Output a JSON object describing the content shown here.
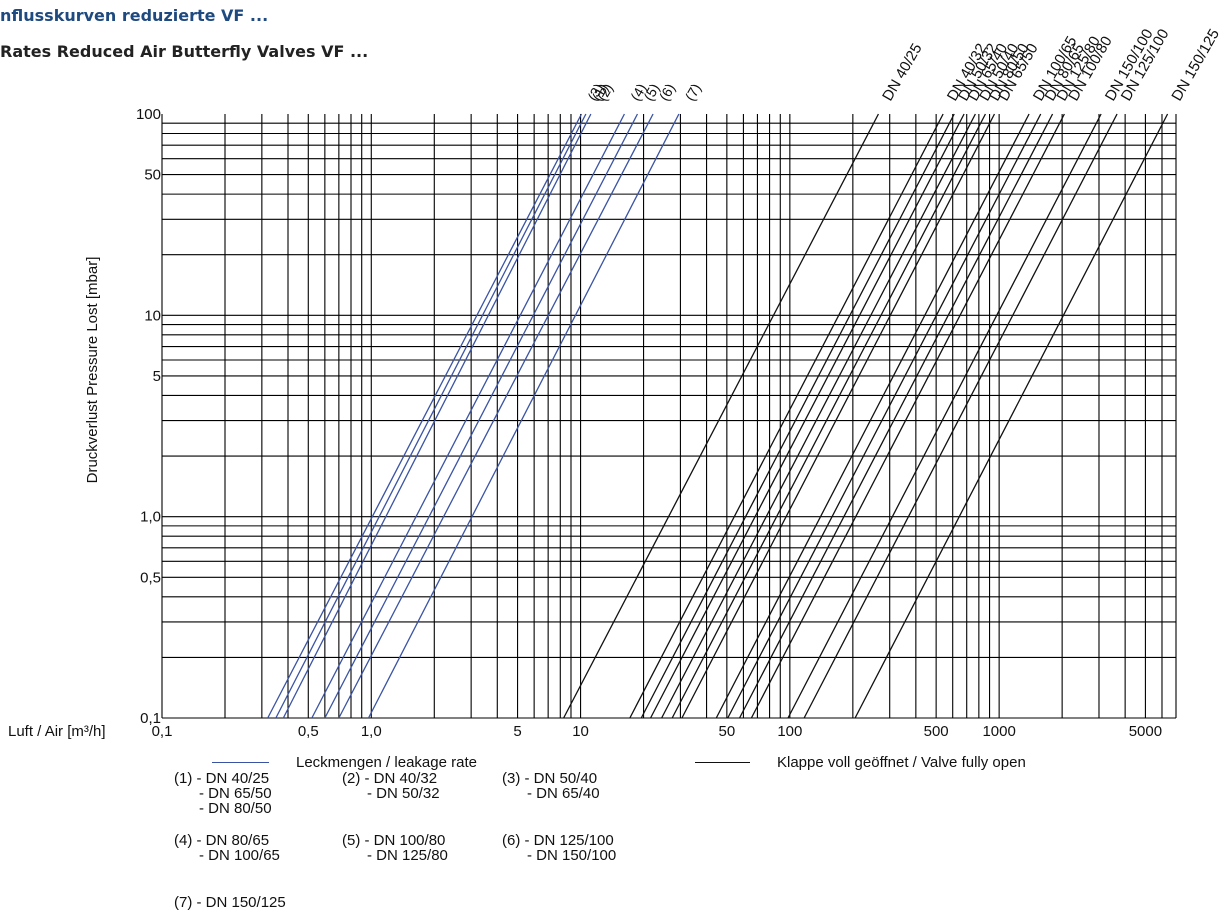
{
  "header": {
    "title_line1": "nflusskurven reduzierte VF ...",
    "title_line2": "Rates Reduced Air Butterfly Valves VF ..."
  },
  "chart_data": {
    "type": "line",
    "xscale": "log",
    "yscale": "log",
    "xlim": [
      0.1,
      7000
    ],
    "ylim": [
      0.1,
      100
    ],
    "xlabel": "Luft / Air [m³/h]",
    "ylabel": "Druckverlust   Pressure Lost   [mbar]",
    "x_ticks": [
      {
        "v": 0.1,
        "label": "0,1"
      },
      {
        "v": 0.5,
        "label": "0,5"
      },
      {
        "v": 1,
        "label": "1,0"
      },
      {
        "v": 5,
        "label": "5"
      },
      {
        "v": 10,
        "label": "10"
      },
      {
        "v": 50,
        "label": "50"
      },
      {
        "v": 100,
        "label": "100"
      },
      {
        "v": 500,
        "label": "500"
      },
      {
        "v": 1000,
        "label": "1000"
      },
      {
        "v": 5000,
        "label": "5000"
      }
    ],
    "y_ticks": [
      {
        "v": 0.1,
        "label": "0,1"
      },
      {
        "v": 0.5,
        "label": "0,5"
      },
      {
        "v": 1,
        "label": "1,0"
      },
      {
        "v": 5,
        "label": "5"
      },
      {
        "v": 10,
        "label": "10"
      },
      {
        "v": 50,
        "label": "50"
      },
      {
        "v": 100,
        "label": "100"
      }
    ],
    "grid": true,
    "series_groups": [
      {
        "name": "Leckmengen / leakage rate",
        "color": "#3a53a4",
        "series": [
          {
            "name": "(3)",
            "x": [
              0.32,
              10.1
            ],
            "y": [
              0.1,
              100
            ]
          },
          {
            "name": "(1)",
            "x": [
              0.35,
              10.6
            ],
            "y": [
              0.1,
              100
            ]
          },
          {
            "name": "(2)",
            "x": [
              0.38,
              11.2
            ],
            "y": [
              0.1,
              100
            ]
          },
          {
            "name": "(4)",
            "x": [
              0.52,
              16.2
            ],
            "y": [
              0.1,
              100
            ]
          },
          {
            "name": "(5)",
            "x": [
              0.6,
              18.7
            ],
            "y": [
              0.1,
              100
            ]
          },
          {
            "name": "(6)",
            "x": [
              0.7,
              22.2
            ],
            "y": [
              0.1,
              100
            ]
          },
          {
            "name": "(7)",
            "x": [
              0.97,
              29.5
            ],
            "y": [
              0.1,
              100
            ]
          }
        ]
      },
      {
        "name": "Klappe voll geöffnet / Valve fully open",
        "color": "#111111",
        "series": [
          {
            "name": "DN 40/25",
            "x": [
              8.3,
              265
            ],
            "y": [
              0.1,
              100
            ]
          },
          {
            "name": "DN 40/32",
            "x": [
              17.2,
              540
            ],
            "y": [
              0.1,
              100
            ]
          },
          {
            "name": "DN 50/32",
            "x": [
              19.5,
              610
            ],
            "y": [
              0.1,
              100
            ]
          },
          {
            "name": "DN 65/40",
            "x": [
              21.6,
              680
            ],
            "y": [
              0.1,
              100
            ]
          },
          {
            "name": "DN 50/40",
            "x": [
              24.4,
              770
            ],
            "y": [
              0.1,
              100
            ]
          },
          {
            "name": "DN 80/50",
            "x": [
              27.4,
              860
            ],
            "y": [
              0.1,
              100
            ]
          },
          {
            "name": "DN 65/50",
            "x": [
              30.5,
              950
            ],
            "y": [
              0.1,
              100
            ]
          },
          {
            "name": "DN 100/65",
            "x": [
              44.5,
              1390
            ],
            "y": [
              0.1,
              100
            ]
          },
          {
            "name": "DN 80/65",
            "x": [
              50.5,
              1580
            ],
            "y": [
              0.1,
              100
            ]
          },
          {
            "name": "DN 125/80",
            "x": [
              57.5,
              1800
            ],
            "y": [
              0.1,
              100
            ]
          },
          {
            "name": "DN 100/80",
            "x": [
              65.5,
              2050
            ],
            "y": [
              0.1,
              100
            ]
          },
          {
            "name": "DN 150/100",
            "x": [
              98,
              3070
            ],
            "y": [
              0.1,
              100
            ]
          },
          {
            "name": "DN 125/100",
            "x": [
              117,
              3660
            ],
            "y": [
              0.1,
              100
            ]
          },
          {
            "name": "DN 150/125",
            "x": [
              205,
              6380
            ],
            "y": [
              0.1,
              100
            ]
          }
        ]
      }
    ]
  },
  "legend": {
    "leak_label": "Leckmengen / leakage rate",
    "open_label": "Klappe voll geöffnet / Valve fully open",
    "groups": [
      "(1) - DN 40/25\n      - DN 65/50\n      - DN 80/50",
      "(2) - DN 40/32\n      - DN 50/32",
      "(3) - DN 50/40\n      - DN 65/40",
      "(4) - DN 80/65\n      - DN 100/65",
      "(5) - DN 100/80\n      - DN 125/80",
      "(6) - DN 125/100\n      - DN 150/100",
      "(7) - DN 150/125"
    ]
  }
}
